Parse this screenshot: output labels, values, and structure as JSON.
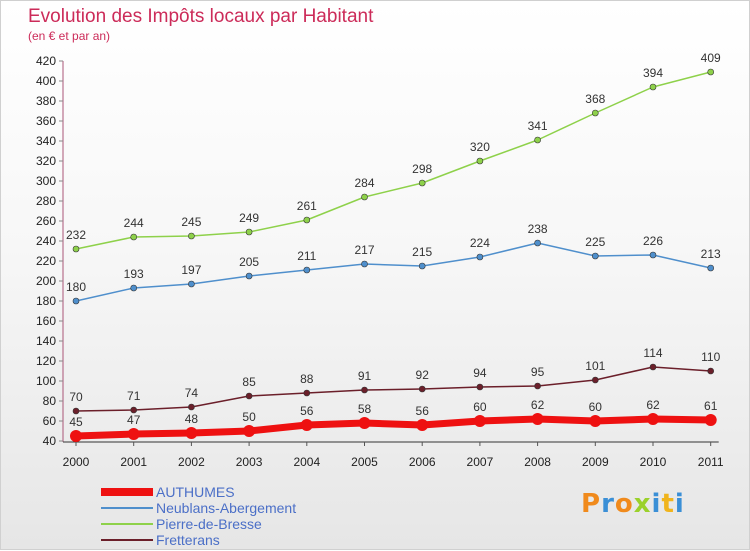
{
  "header": {
    "title": "Evolution des Impôts locaux par Habitant",
    "subtitle": "(en € et par an)"
  },
  "logo": {
    "text": "Proxiti"
  },
  "chart_data": {
    "type": "line",
    "title": "Evolution des Impôts locaux par Habitant",
    "subtitle": "(en € et par an)",
    "xlabel": "",
    "ylabel": "",
    "x": [
      "2000",
      "2001",
      "2002",
      "2003",
      "2004",
      "2005",
      "2006",
      "2007",
      "2008",
      "2009",
      "2010",
      "2011"
    ],
    "ylim": [
      40,
      420
    ],
    "yticks": [
      40,
      60,
      80,
      100,
      120,
      140,
      160,
      180,
      200,
      220,
      240,
      260,
      280,
      300,
      320,
      340,
      360,
      380,
      400,
      420
    ],
    "grid": false,
    "legend_position": "bottom-left",
    "series": [
      {
        "name": "AUTHUMES",
        "color": "#ee1111",
        "values": [
          45,
          47,
          48,
          50,
          56,
          58,
          56,
          60,
          62,
          60,
          62,
          61
        ]
      },
      {
        "name": "Neublans-Abergement",
        "color": "#4f8fcc",
        "values": [
          180,
          193,
          197,
          205,
          211,
          217,
          215,
          224,
          238,
          225,
          226,
          213
        ]
      },
      {
        "name": "Pierre-de-Bresse",
        "color": "#8ed14a",
        "values": [
          232,
          244,
          245,
          249,
          261,
          284,
          298,
          320,
          341,
          368,
          394,
          409
        ]
      },
      {
        "name": "Fretterans",
        "color": "#6b1f2a",
        "values": [
          70,
          71,
          74,
          85,
          88,
          91,
          92,
          94,
          95,
          101,
          114,
          110
        ]
      }
    ]
  }
}
